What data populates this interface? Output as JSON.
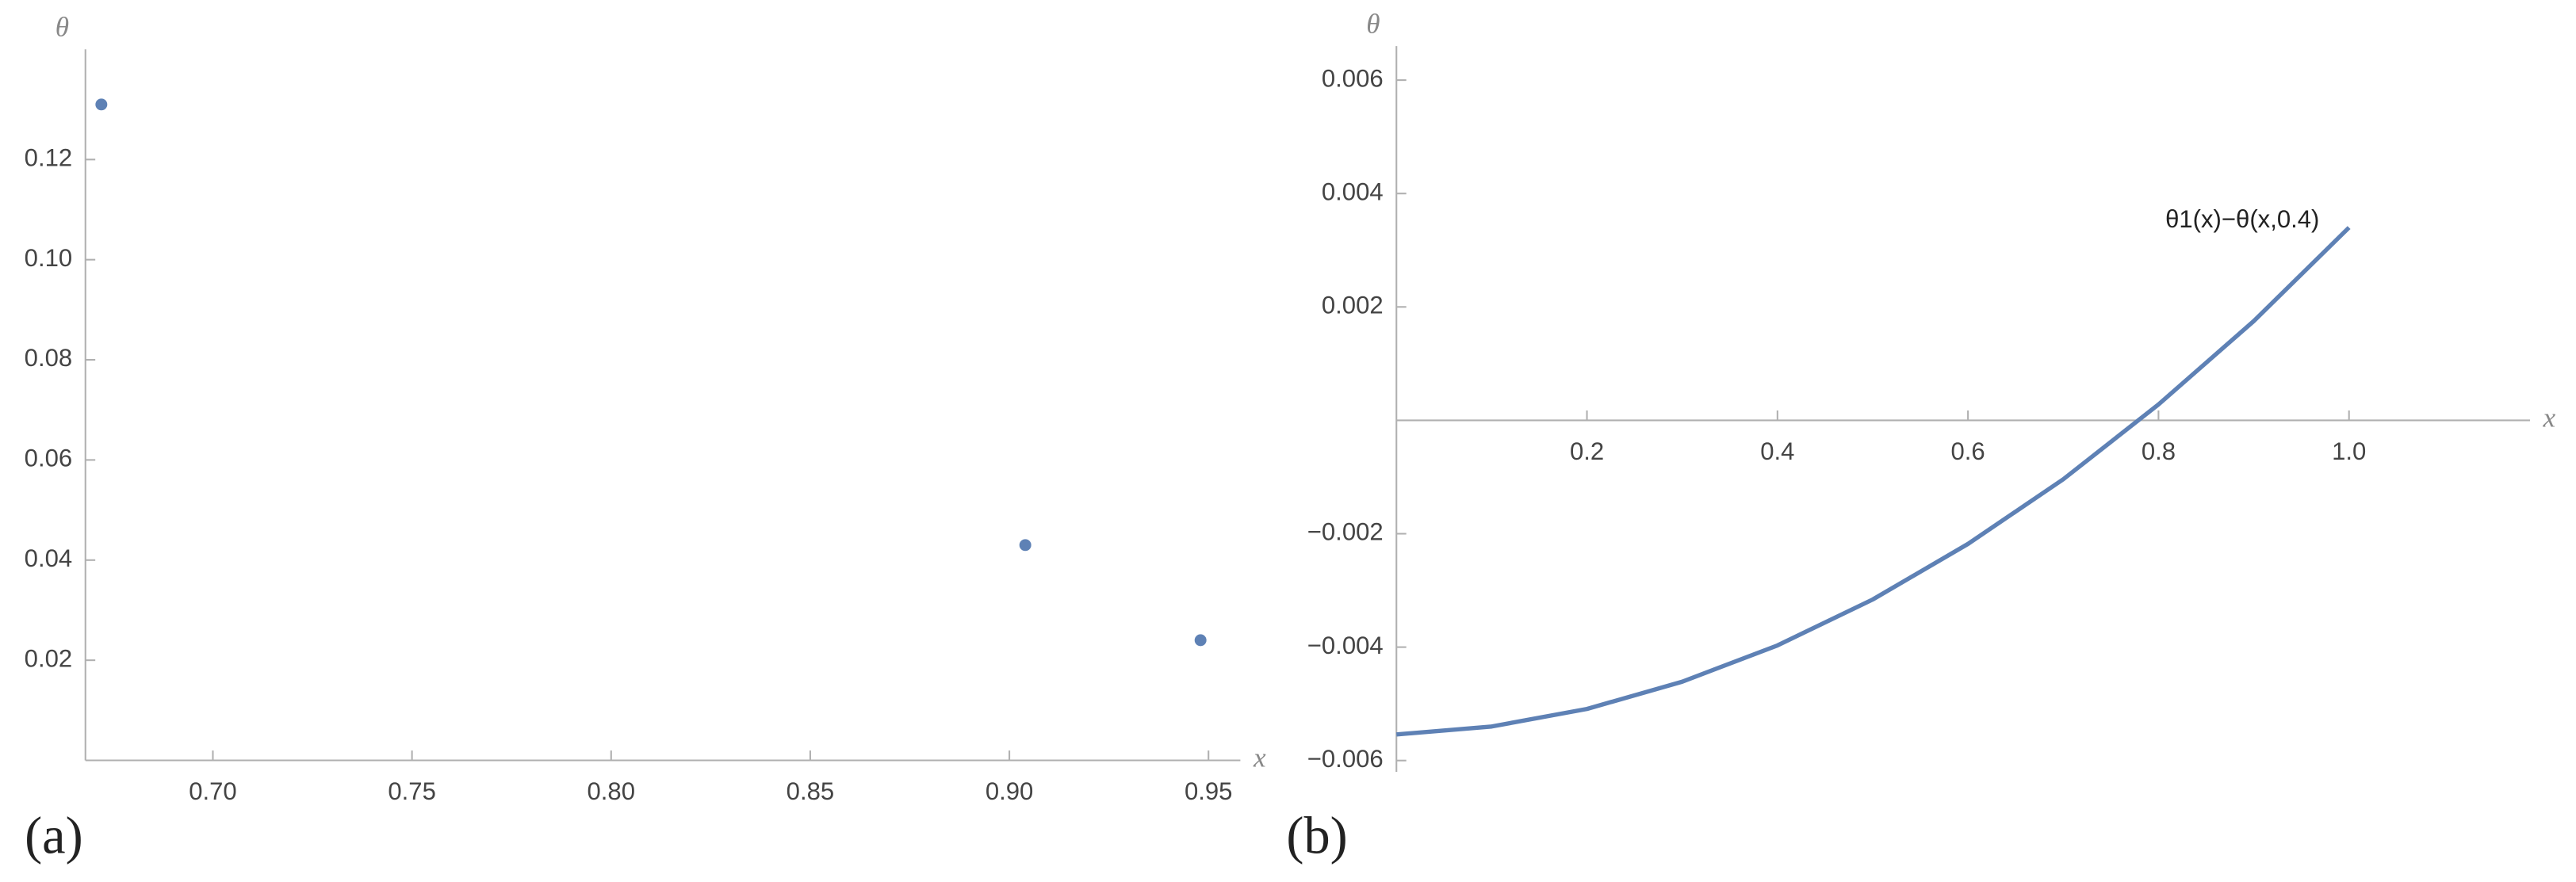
{
  "chart_data": [
    {
      "type": "scatter",
      "panel_label": "(a)",
      "xlabel": "x",
      "ylabel": "θ",
      "x": [
        0.672,
        0.904,
        0.948
      ],
      "values": [
        0.131,
        0.043,
        0.024
      ],
      "color": "#5e81b5",
      "xlim": [
        0.668,
        0.958
      ],
      "ylim": [
        0,
        0.142
      ],
      "xticks": [
        {
          "value": 0.7,
          "label": "0.70"
        },
        0.75,
        {
          "value": 0.8,
          "label": "0.80"
        },
        0.85,
        {
          "value": 0.9,
          "label": "0.90"
        },
        0.95
      ],
      "yticks": [
        0.02,
        0.04,
        0.06,
        0.08,
        {
          "value": 0.1,
          "label": "0.10"
        },
        0.12
      ],
      "grid": false
    },
    {
      "type": "line",
      "panel_label": "(b)",
      "xlabel": "x",
      "ylabel": "θ",
      "annotation": "θ1(x)−θ(x,0.4)",
      "x": [
        0,
        0.1,
        0.2,
        0.3,
        0.4,
        0.5,
        0.6,
        0.7,
        0.8,
        0.9,
        1.0
      ],
      "values": [
        -0.00554,
        -0.0054,
        -0.00509,
        -0.00461,
        -0.00397,
        -0.00316,
        -0.00218,
        -0.00104,
        0.00028,
        0.00175,
        0.0034
      ],
      "color": "#5e81b5",
      "xlim": [
        0,
        1.19
      ],
      "ylim": [
        -0.0062,
        0.0066
      ],
      "xticks": [
        0.2,
        0.4,
        0.6,
        0.8,
        {
          "value": 1,
          "label": "1.0"
        }
      ],
      "yticks": [
        {
          "value": -0.006,
          "label": "−0.006"
        },
        {
          "value": -0.004,
          "label": "−0.004"
        },
        {
          "value": -0.002,
          "label": "−0.002"
        },
        0.002,
        0.004,
        0.006
      ],
      "grid": false
    }
  ]
}
